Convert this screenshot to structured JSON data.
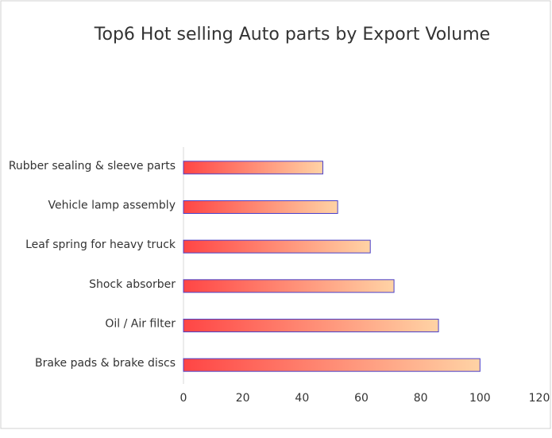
{
  "chart_data": {
    "type": "hbar",
    "title": "Top6 Hot selling Auto parts by Export Volume",
    "categories": [
      "Rubber sealing & sleeve parts",
      "Vehicle lamp assembly",
      "Leaf spring for heavy truck",
      "Shock absorber",
      "Oil / Air filter",
      "Brake pads & brake discs"
    ],
    "values": [
      47,
      52,
      63,
      71,
      86,
      100
    ],
    "gradient_colors": [
      "#ff4545",
      "#ffd3a5"
    ],
    "edge_color": "#4a3fc8",
    "xlim": [
      0,
      120
    ],
    "xticks": [
      0,
      20,
      40,
      60,
      80,
      100,
      120
    ],
    "grid": false
  }
}
